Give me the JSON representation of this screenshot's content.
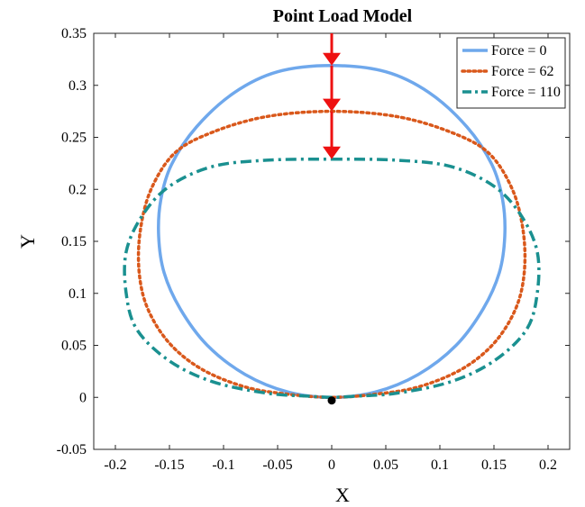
{
  "chart_data": {
    "type": "line",
    "title": "Point Load Model",
    "xlabel": "X",
    "ylabel": "Y",
    "xlim": [
      -0.22,
      0.22
    ],
    "ylim": [
      -0.05,
      0.35
    ],
    "xticks": [
      -0.2,
      -0.15,
      -0.1,
      -0.05,
      0,
      0.05,
      0.1,
      0.15,
      0.2
    ],
    "xtick_labels": [
      "-0.2",
      "-0.15",
      "-0.1",
      "-0.05",
      "0",
      "0.05",
      "0.1",
      "0.15",
      "0.2"
    ],
    "yticks": [
      -0.05,
      0,
      0.05,
      0.1,
      0.15,
      0.2,
      0.25,
      0.3,
      0.35
    ],
    "ytick_labels": [
      "-0.05",
      "0",
      "0.05",
      "0.1",
      "0.15",
      "0.2",
      "0.25",
      "0.3",
      "0.35"
    ],
    "grid": false,
    "legend_position": "top-right",
    "series": [
      {
        "name": "Force = 0",
        "style": "solid",
        "color": "#6fa8ec",
        "x": [
          0,
          0.05,
          0.09,
          0.125,
          0.148,
          0.158,
          0.16,
          0.155,
          0.14,
          0.115,
          0.08,
          0.04,
          0,
          -0.04,
          -0.08,
          -0.115,
          -0.14,
          -0.155,
          -0.16,
          -0.158,
          -0.148,
          -0.125,
          -0.09,
          -0.05,
          0
        ],
        "y": [
          0.319,
          0.313,
          0.293,
          0.26,
          0.224,
          0.19,
          0.155,
          0.12,
          0.085,
          0.05,
          0.022,
          0.005,
          0,
          0.005,
          0.022,
          0.05,
          0.085,
          0.12,
          0.155,
          0.19,
          0.224,
          0.26,
          0.293,
          0.313,
          0.319
        ]
      },
      {
        "name": "Force = 62",
        "style": "dotted",
        "color": "#d9581b",
        "x": [
          0,
          0.06,
          0.11,
          0.145,
          0.167,
          0.177,
          0.178,
          0.17,
          0.15,
          0.12,
          0.08,
          0.04,
          0,
          -0.04,
          -0.08,
          -0.12,
          -0.15,
          -0.17,
          -0.178,
          -0.177,
          -0.167,
          -0.145,
          -0.11,
          -0.06,
          0
        ],
        "y": [
          0.275,
          0.27,
          0.255,
          0.235,
          0.2,
          0.16,
          0.12,
          0.085,
          0.052,
          0.027,
          0.01,
          0.003,
          0,
          0.003,
          0.01,
          0.027,
          0.052,
          0.085,
          0.12,
          0.16,
          0.2,
          0.235,
          0.255,
          0.27,
          0.275
        ]
      },
      {
        "name": "Force = 110",
        "style": "dashdot",
        "color": "#1a9090",
        "x": [
          0,
          0.06,
          0.11,
          0.15,
          0.175,
          0.19,
          0.19,
          0.18,
          0.15,
          0.11,
          0.06,
          0.02,
          0,
          -0.02,
          -0.06,
          -0.11,
          -0.15,
          -0.18,
          -0.19,
          -0.19,
          -0.175,
          -0.15,
          -0.11,
          -0.06,
          0
        ],
        "y": [
          0.229,
          0.228,
          0.222,
          0.203,
          0.175,
          0.14,
          0.1,
          0.065,
          0.035,
          0.015,
          0.004,
          0.001,
          0,
          0.001,
          0.004,
          0.015,
          0.035,
          0.065,
          0.1,
          0.14,
          0.175,
          0.203,
          0.222,
          0.228,
          0.229
        ]
      }
    ],
    "point_marker": {
      "x": 0,
      "y": -0.003,
      "color": "#000000"
    },
    "load_arrows": {
      "color": "#ee1111",
      "x": 0,
      "segments": [
        {
          "y_from": 0.35,
          "y_to": 0.319
        },
        {
          "y_from": 0.319,
          "y_to": 0.275
        },
        {
          "y_from": 0.275,
          "y_to": 0.229
        }
      ]
    }
  }
}
